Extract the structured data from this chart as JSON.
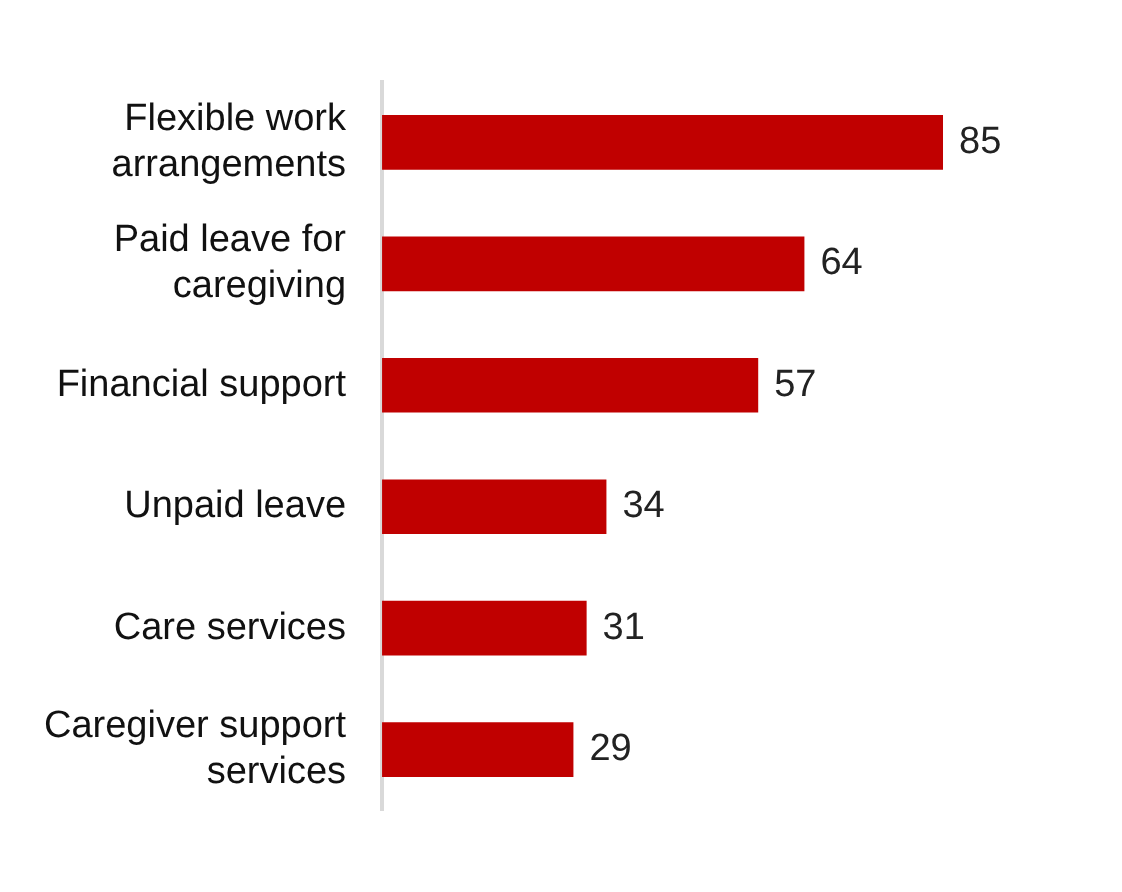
{
  "chart_data": {
    "type": "bar",
    "orientation": "horizontal",
    "categories": [
      "Flexible work arrangements",
      "Paid leave for caregiving",
      "Financial support",
      "Unpaid leave",
      "Care services",
      "Caregiver support services"
    ],
    "values": [
      85,
      64,
      57,
      34,
      31,
      29
    ],
    "color": "#c00000",
    "tick_labels": "y",
    "data_labels": true
  }
}
